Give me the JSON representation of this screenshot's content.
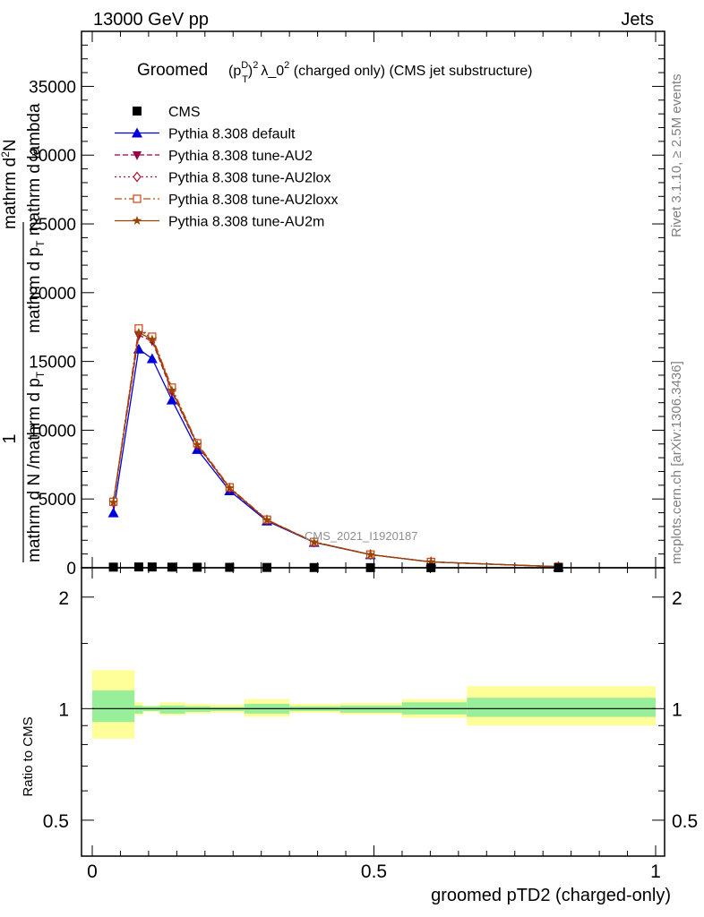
{
  "header": {
    "left": "13000 GeV pp",
    "right": "Jets"
  },
  "side_labels": {
    "rivet": "Rivet 3.1.10, ≥ 2.5M events",
    "mcplots": "mcplots.cern.ch [arXiv:1306.3436]"
  },
  "watermark": "CMS_2021_I1920187",
  "title": {
    "prefix": "Groomed",
    "formula": "(p",
    "sup_d": "D",
    "sub_t": "T",
    "close": ")",
    "sup_2": "2",
    "lambda": "λ_0",
    "sup_2b": "2",
    "suffix": "  (charged only) (CMS jet substructure)"
  },
  "ylabel_parts": [
    "1",
    "mathrm d N /mathrm d p_T mathrm d p_T mathrm d lambda",
    "mathrm d N",
    "mathrm d^2N"
  ],
  "ylabel_lines": {
    "numer1": "1",
    "denom1": "mathrm d N /mathrm d p",
    "denom1_sub": "T",
    "numer2": "mathrm d",
    "numer2_sup": "2",
    "numer2_end": "N",
    "denom2": "mathrm d p",
    "denom2_sub": "T",
    "denom2_end": " mathrm d lambda"
  },
  "ratio_ylabel": "Ratio to CMS",
  "xlabel": "groomed pTD2 (charged-only)",
  "legend": [
    {
      "label": "CMS",
      "color": "#000000",
      "marker": "square-filled",
      "line": "none"
    },
    {
      "label": "Pythia 8.308 default",
      "color": "#0000dd",
      "marker": "triangle-up-filled",
      "line": "solid"
    },
    {
      "label": "Pythia 8.308 tune-AU2",
      "color": "#990044",
      "marker": "triangle-down-filled",
      "line": "dashed"
    },
    {
      "label": "Pythia 8.308 tune-AU2lox",
      "color": "#aa1133",
      "marker": "diamond-open",
      "line": "dotted"
    },
    {
      "label": "Pythia 8.308 tune-AU2loxx",
      "color": "#cc4411",
      "marker": "square-open",
      "line": "dashdot"
    },
    {
      "label": "Pythia 8.308 tune-AU2m",
      "color": "#994400",
      "marker": "star",
      "line": "solid"
    }
  ],
  "chart_data": [
    {
      "type": "line",
      "panel": "main",
      "xlim": [
        0,
        1
      ],
      "ylim": [
        0,
        39000
      ],
      "y_ticks": [
        0,
        5000,
        10000,
        15000,
        20000,
        25000,
        30000,
        35000
      ],
      "y_tick_labels": [
        "0",
        "5000",
        "10000",
        "15000",
        "20000",
        "25000",
        "30000",
        "35000"
      ],
      "x": [
        0.0375,
        0.0825,
        0.1063,
        0.1413,
        0.1863,
        0.2438,
        0.31,
        0.3938,
        0.4938,
        0.6013,
        0.8275
      ],
      "series": [
        {
          "name": "CMS",
          "values": [
            45,
            58,
            55,
            45,
            38,
            30,
            22,
            15,
            10,
            6,
            3
          ]
        },
        {
          "name": "Pythia 8.308 default",
          "values": [
            4000,
            15900,
            15200,
            12200,
            8600,
            5600,
            3400,
            1850,
            950,
            420,
            80
          ]
        },
        {
          "name": "Pythia 8.308 tune-AU2",
          "values": [
            4700,
            16900,
            16500,
            12800,
            8900,
            5750,
            3450,
            1850,
            950,
            420,
            80
          ]
        },
        {
          "name": "Pythia 8.308 tune-AU2lox",
          "values": [
            4800,
            17300,
            16700,
            13000,
            9000,
            5800,
            3480,
            1870,
            960,
            420,
            80
          ]
        },
        {
          "name": "Pythia 8.308 tune-AU2loxx",
          "values": [
            4800,
            17400,
            16800,
            13100,
            9050,
            5850,
            3500,
            1880,
            965,
            425,
            80
          ]
        },
        {
          "name": "Pythia 8.308 tune-AU2m",
          "values": [
            4750,
            17100,
            16600,
            12900,
            8950,
            5800,
            3470,
            1860,
            955,
            420,
            80
          ]
        }
      ]
    },
    {
      "type": "area",
      "panel": "ratio",
      "xlim": [
        0,
        1
      ],
      "ylim": [
        0.4,
        2.4
      ],
      "log_scale": true,
      "y_ticks": [
        0.5,
        1,
        2
      ],
      "y_tick_labels": [
        "0.5",
        "1",
        "2"
      ],
      "x_ticks": [
        0,
        0.5,
        1
      ],
      "x_tick_labels": [
        "0",
        "0.5",
        "1"
      ],
      "bins": [
        [
          0.0,
          0.075
        ],
        [
          0.075,
          0.09
        ],
        [
          0.09,
          0.12
        ],
        [
          0.12,
          0.165
        ],
        [
          0.165,
          0.21
        ],
        [
          0.21,
          0.27
        ],
        [
          0.27,
          0.35
        ],
        [
          0.35,
          0.44
        ],
        [
          0.44,
          0.55
        ],
        [
          0.55,
          0.665
        ],
        [
          0.665,
          1.0
        ]
      ],
      "stat_band": [
        [
          0.92,
          1.12
        ],
        [
          0.97,
          1.02
        ],
        [
          0.985,
          1.015
        ],
        [
          0.97,
          1.02
        ],
        [
          0.98,
          1.015
        ],
        [
          0.985,
          1.01
        ],
        [
          0.97,
          1.03
        ],
        [
          0.985,
          1.015
        ],
        [
          0.975,
          1.02
        ],
        [
          0.965,
          1.04
        ],
        [
          0.95,
          1.07
        ]
      ],
      "total_band": [
        [
          0.83,
          1.27
        ],
        [
          0.96,
          1.04
        ],
        [
          0.98,
          1.02
        ],
        [
          0.96,
          1.04
        ],
        [
          0.97,
          1.03
        ],
        [
          0.975,
          1.025
        ],
        [
          0.95,
          1.06
        ],
        [
          0.975,
          1.03
        ],
        [
          0.965,
          1.035
        ],
        [
          0.945,
          1.06
        ],
        [
          0.9,
          1.15
        ]
      ],
      "reference_line": 1
    }
  ]
}
